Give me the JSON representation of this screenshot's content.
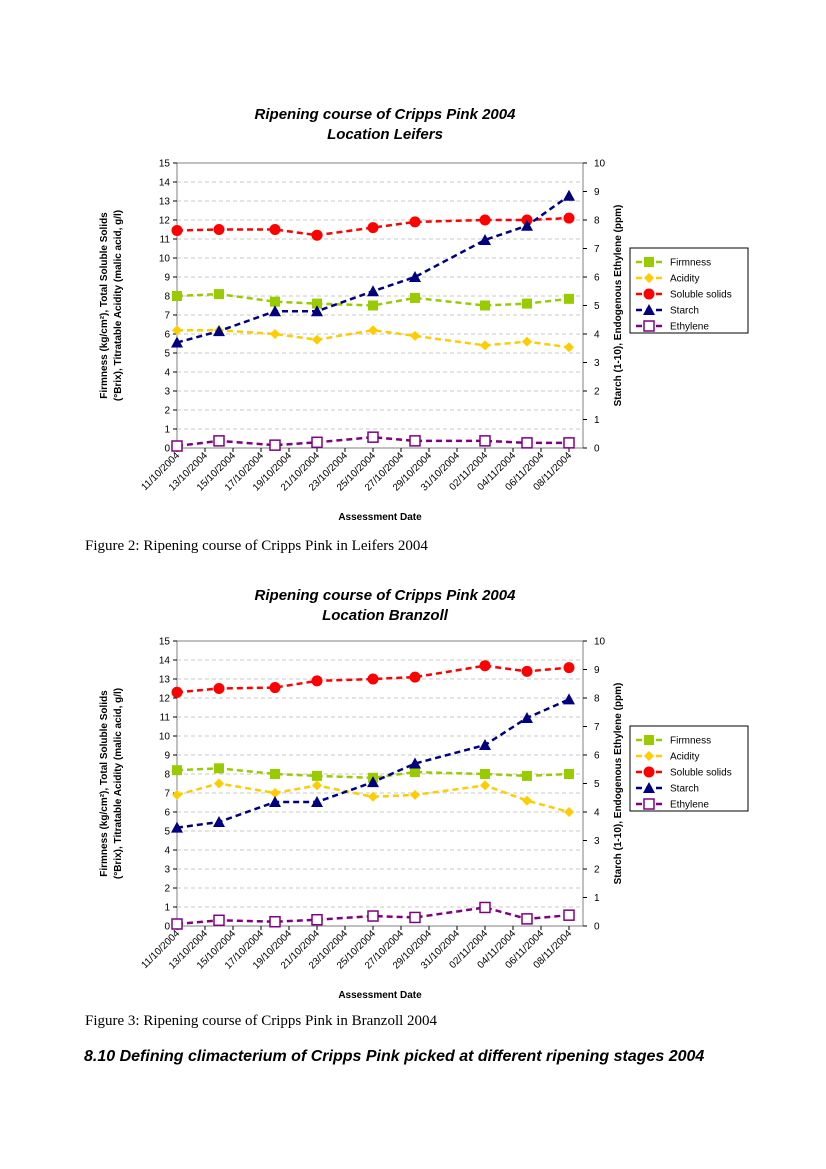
{
  "chart_data": [
    {
      "type": "line",
      "title": "Ripening course of Cripps Pink 2004",
      "subtitle": "Location Leifers",
      "xlabel": "Assessment Date",
      "ylabel_left_line1": "Firmness (kg/cm²), Total Soluble Solids",
      "ylabel_left_line2": "(°Brix), Titratable Acidity (malic acid, g/l)",
      "ylabel_right": "Starch (1-10), Endogenous Ethylene (ppm)",
      "ylim": [
        0,
        15
      ],
      "y2lim": [
        0,
        10
      ],
      "xlim": [
        "11/10/2004",
        "09/11/2004"
      ],
      "grid": true,
      "legend_position": "right",
      "x_ticks": [
        "11/10/2004",
        "13/10/2004",
        "15/10/2004",
        "17/10/2004",
        "19/10/2004",
        "21/10/2004",
        "23/10/2004",
        "25/10/2004",
        "27/10/2004",
        "29/10/2004",
        "31/10/2004",
        "02/11/2004",
        "04/11/2004",
        "06/11/2004",
        "08/11/2004"
      ],
      "y_ticks": [
        "0",
        "1",
        "2",
        "3",
        "4",
        "5",
        "6",
        "7",
        "8",
        "9",
        "10",
        "11",
        "12",
        "13",
        "14",
        "15"
      ],
      "y2_ticks": [
        "0",
        "1",
        "2",
        "3",
        "4",
        "5",
        "6",
        "7",
        "8",
        "9",
        "10"
      ],
      "x_dates": [
        "11/10/2004",
        "14/10/2004",
        "18/10/2004",
        "21/10/2004",
        "25/10/2004",
        "28/10/2004",
        "02/11/2004",
        "05/11/2004",
        "08/11/2004"
      ],
      "series": [
        {
          "name": "Firmness",
          "axis": "left",
          "color": "#99cc00",
          "marker": "square",
          "values": [
            8.0,
            8.1,
            7.7,
            7.6,
            7.5,
            7.9,
            7.5,
            7.6,
            7.85
          ]
        },
        {
          "name": "Acidity",
          "axis": "left",
          "color": "#ffcc00",
          "marker": "diamond",
          "values": [
            6.2,
            6.2,
            6.0,
            5.7,
            6.2,
            5.9,
            5.4,
            5.6,
            5.3
          ]
        },
        {
          "name": "Soluble solids",
          "axis": "left",
          "color": "#ff0000",
          "marker": "circle",
          "values": [
            11.45,
            11.5,
            11.5,
            11.2,
            11.6,
            11.9,
            12.0,
            12.0,
            12.1
          ]
        },
        {
          "name": "Starch",
          "axis": "right",
          "color": "#000080",
          "marker": "triangle",
          "values": [
            3.7,
            4.1,
            4.8,
            4.8,
            5.5,
            6.0,
            7.3,
            7.8,
            8.85
          ]
        },
        {
          "name": "Ethylene",
          "axis": "right",
          "color": "#800080",
          "marker": "open-square",
          "values": [
            0.07,
            0.25,
            0.1,
            0.2,
            0.38,
            0.25,
            0.25,
            0.18,
            0.18
          ]
        }
      ]
    },
    {
      "type": "line",
      "title": "Ripening course of Cripps Pink 2004",
      "subtitle": "Location Branzoll",
      "xlabel": "Assessment Date",
      "ylabel_left_line1": "Firmness (kg/cm²), Total Soluble Solids",
      "ylabel_left_line2": "(°Brix), Titratable Acidity (malic acid, g/l)",
      "ylabel_right": "Starch (1-10), Endogenous Ethylene (ppm)",
      "ylim": [
        0,
        15
      ],
      "y2lim": [
        0,
        10
      ],
      "xlim": [
        "11/10/2004",
        "09/11/2004"
      ],
      "grid": true,
      "legend_position": "right",
      "x_ticks": [
        "11/10/2004",
        "13/10/2004",
        "15/10/2004",
        "17/10/2004",
        "19/10/2004",
        "21/10/2004",
        "23/10/2004",
        "25/10/2004",
        "27/10/2004",
        "29/10/2004",
        "31/10/2004",
        "02/11/2004",
        "04/11/2004",
        "06/11/2004",
        "08/11/2004"
      ],
      "y_ticks": [
        "0",
        "1",
        "2",
        "3",
        "4",
        "5",
        "6",
        "7",
        "8",
        "9",
        "10",
        "11",
        "12",
        "13",
        "14",
        "15"
      ],
      "y2_ticks": [
        "0",
        "1",
        "2",
        "3",
        "4",
        "5",
        "6",
        "7",
        "8",
        "9",
        "10"
      ],
      "x_dates": [
        "11/10/2004",
        "14/10/2004",
        "18/10/2004",
        "21/10/2004",
        "25/10/2004",
        "28/10/2004",
        "02/11/2004",
        "05/11/2004",
        "08/11/2004"
      ],
      "series": [
        {
          "name": "Firmness",
          "axis": "left",
          "color": "#99cc00",
          "marker": "square",
          "values": [
            8.2,
            8.3,
            8.0,
            7.9,
            7.8,
            8.1,
            8.0,
            7.9,
            8.0
          ]
        },
        {
          "name": "Acidity",
          "axis": "left",
          "color": "#ffcc00",
          "marker": "diamond",
          "values": [
            6.9,
            7.5,
            7.0,
            7.4,
            6.8,
            6.9,
            7.4,
            6.6,
            6.0
          ]
        },
        {
          "name": "Soluble solids",
          "axis": "left",
          "color": "#ff0000",
          "marker": "circle",
          "values": [
            12.3,
            12.5,
            12.55,
            12.9,
            13.0,
            13.1,
            13.7,
            13.4,
            13.6
          ]
        },
        {
          "name": "Starch",
          "axis": "right",
          "color": "#000080",
          "marker": "triangle",
          "values": [
            3.45,
            3.65,
            4.35,
            4.35,
            5.05,
            5.7,
            6.35,
            7.3,
            7.95
          ]
        },
        {
          "name": "Ethylene",
          "axis": "right",
          "color": "#800080",
          "marker": "open-square",
          "values": [
            0.07,
            0.2,
            0.15,
            0.22,
            0.35,
            0.3,
            0.65,
            0.25,
            0.38
          ]
        }
      ]
    }
  ],
  "captions": {
    "figure2": "Figure 2: Ripening course of Cripps Pink in Leifers 2004",
    "figure3": "Figure 3: Ripening course of Cripps Pink in Branzoll 2004"
  },
  "section_heading": "8.10 Defining climacterium of Cripps Pink picked at different ripening stages 2004"
}
